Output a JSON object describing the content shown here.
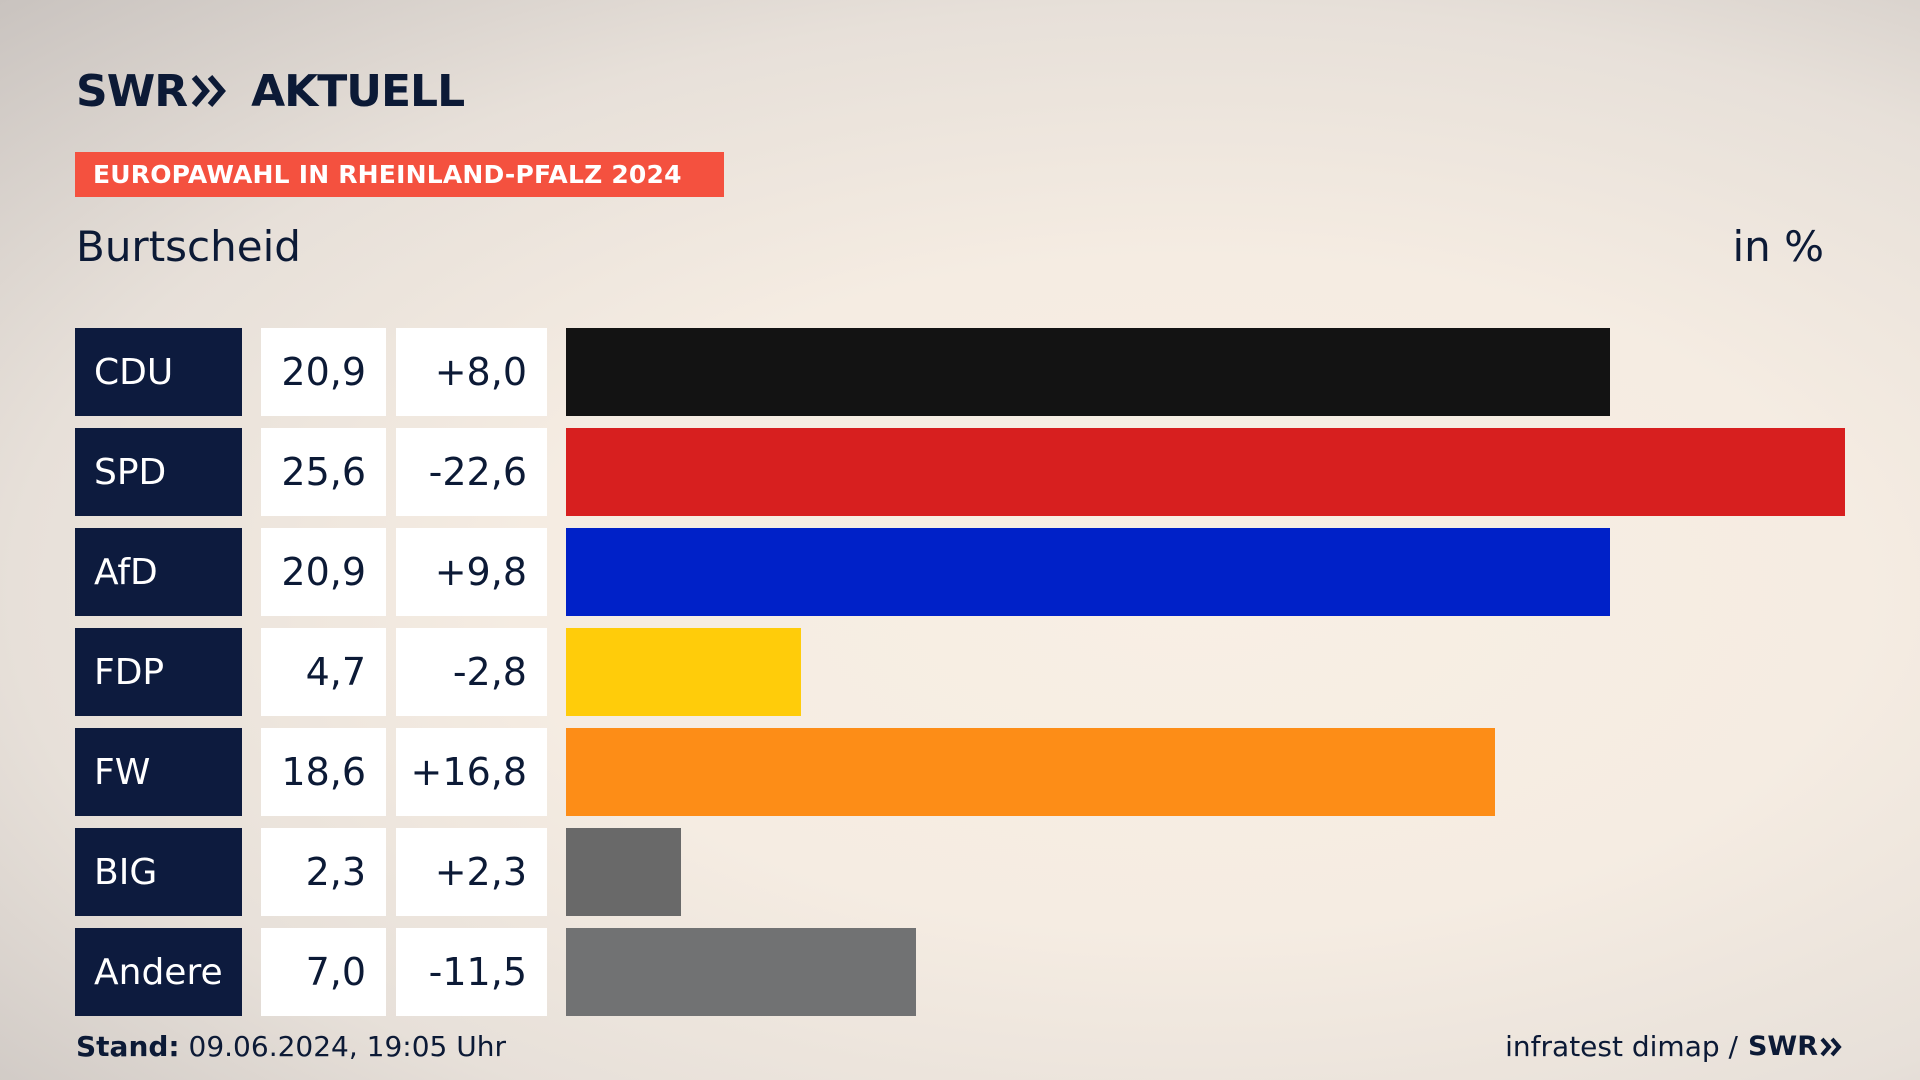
{
  "header": {
    "logo_swr": "SWR",
    "logo_aktuell": "AKTUELL",
    "banner": "EUROPAWAHL IN RHEINLAND-PFALZ 2024",
    "subtitle": "Burtscheid",
    "unit": "in %"
  },
  "colors": {
    "navy": "#0d1b3e",
    "banner_red": "#f4513f"
  },
  "chart_data": {
    "type": "bar",
    "orientation": "horizontal",
    "title": "Burtscheid",
    "unit": "in %",
    "categories": [
      "CDU",
      "SPD",
      "AfD",
      "FDP",
      "FW",
      "BIG",
      "Andere"
    ],
    "values": [
      20.9,
      25.6,
      20.9,
      4.7,
      18.6,
      2.3,
      7.0
    ],
    "value_labels": [
      "20,9",
      "25,6",
      "20,9",
      "4,7",
      "18,6",
      "2,3",
      "7,0"
    ],
    "change_labels": [
      "+8,0",
      "-22,6",
      "+9,8",
      "-2,8",
      "+16,8",
      "+2,3",
      "-11,5"
    ],
    "bar_colors": [
      "#131313",
      "#d71f1f",
      "#0021c8",
      "#ffcc0a",
      "#fd8d17",
      "#696969",
      "#717273"
    ],
    "xlim": [
      0,
      25.6
    ],
    "grid": false,
    "legend": "none"
  },
  "footer": {
    "stand_label": "Stand:",
    "stand_value": "09.06.2024, 19:05 Uhr",
    "source": "infratest dimap /",
    "brand": "SWR"
  }
}
